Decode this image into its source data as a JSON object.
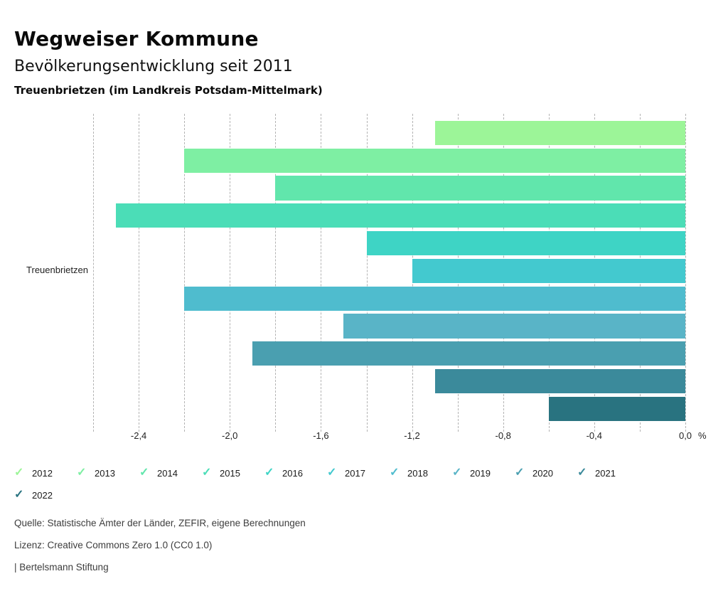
{
  "header": {
    "title": "Wegweiser Kommune",
    "subtitle": "Bevölkerungsentwicklung seit 2011",
    "region": "Treuenbrietzen (im Landkreis Potsdam-Mittelmark)"
  },
  "chart_data": {
    "type": "bar",
    "orientation": "horizontal",
    "title": "Bevölkerungsentwicklung seit 2011",
    "group_label": "Treuenbrietzen",
    "unit": "%",
    "categories": [
      "2012",
      "2013",
      "2014",
      "2015",
      "2016",
      "2017",
      "2018",
      "2019",
      "2020",
      "2021",
      "2022"
    ],
    "values": [
      -1.1,
      -2.2,
      -1.8,
      -2.5,
      -1.4,
      -1.2,
      -2.2,
      -1.5,
      -1.9,
      -1.1,
      -0.6
    ],
    "colors": [
      "#9cf598",
      "#7eefa3",
      "#61e6ac",
      "#4bddb7",
      "#3ed4c5",
      "#43c9cf",
      "#4fbcce",
      "#59b4c7",
      "#4a9fb0",
      "#3b8a9b",
      "#297380"
    ],
    "xlim": [
      -2.6,
      0.0
    ],
    "grid": true,
    "grid_step": 0.2,
    "gridline_color": "#b3b3b3",
    "x_ticks": [
      -2.4,
      -2.0,
      -1.6,
      -1.2,
      -0.8,
      -0.4,
      0.0
    ],
    "x_tick_labels": [
      "-2,4",
      "-2,0",
      "-1,6",
      "-1,2",
      "-0,8",
      "-0,4",
      "0,0"
    ],
    "legend_position": "bottom",
    "legend_marker_glyph": "✓"
  },
  "footer": {
    "source": "Quelle: Statistische Ämter der Länder, ZEFIR, eigene Berechnungen",
    "license": "Lizenz: Creative Commons Zero 1.0 (CC0 1.0)",
    "attribution": "| Bertelsmann Stiftung"
  }
}
